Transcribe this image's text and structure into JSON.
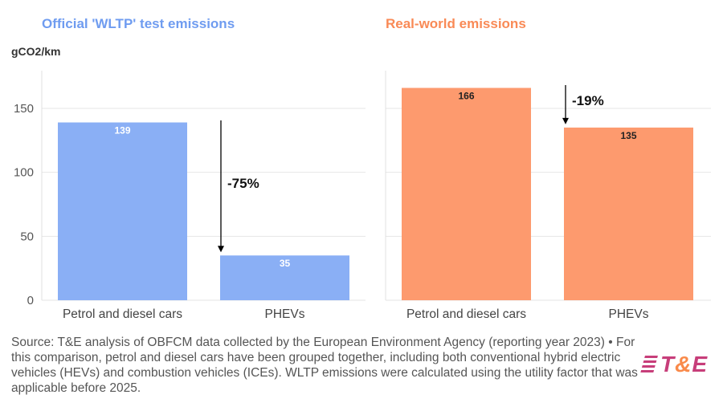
{
  "chart_data": [
    {
      "type": "bar",
      "title": "Official 'WLTP' test emissions",
      "ylabel": "gCO2/km",
      "categories": [
        "Petrol and diesel cars",
        "PHEVs"
      ],
      "values": [
        139,
        35
      ],
      "ylim": [
        0,
        175
      ],
      "yticks": [
        0,
        50,
        100,
        150
      ],
      "grid": true,
      "color": "#8aaff5",
      "title_color": "#6f9cf0",
      "annotation": "-75%"
    },
    {
      "type": "bar",
      "title": "Real-world emissions",
      "categories": [
        "Petrol and diesel cars",
        "PHEVs"
      ],
      "values": [
        166,
        135
      ],
      "ylim": [
        0,
        175
      ],
      "grid": true,
      "color": "#fd9a6e",
      "title_color": "#f98a56",
      "annotation": "-19%"
    }
  ],
  "source": "Source: T&E analysis of OBFCM data collected by the European Environment Agency (reporting year 2023) • For this comparison, petrol and diesel cars have been grouped together, including both conventional hybrid electric vehicles (HEVs) and combustion vehicles (ICEs). WLTP emissions were calculated using the utility factor that was applicable before 2025.",
  "logo": {
    "text_t": "T",
    "text_amp": "&",
    "text_e": "E"
  }
}
